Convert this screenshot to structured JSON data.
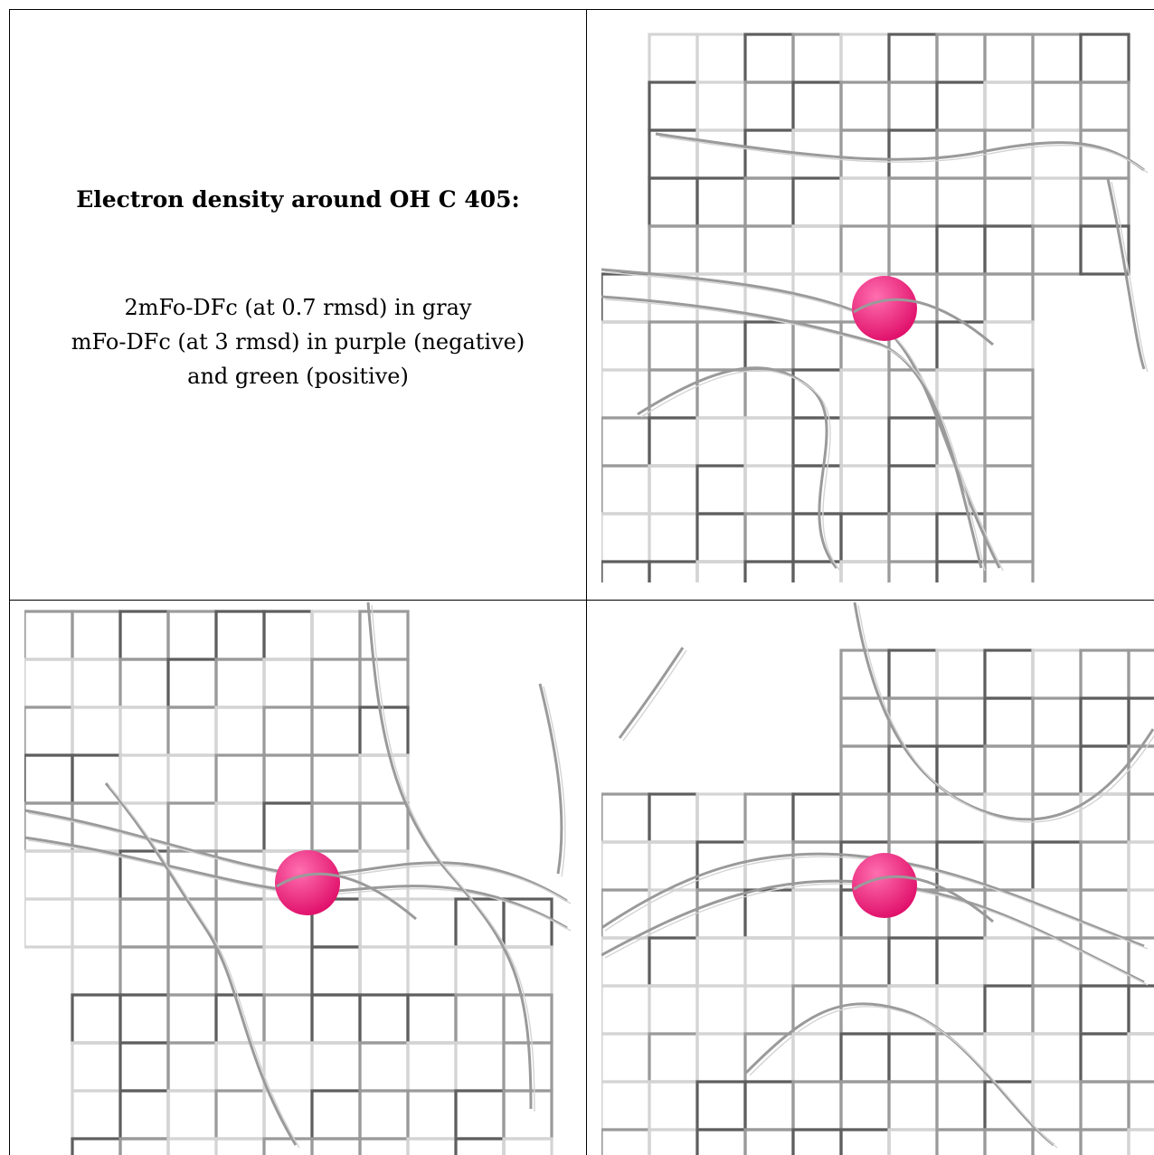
{
  "caption": {
    "title": "Electron density around OH C 405:",
    "line1": "2mFo-DFc (at 0.7 rmsd) in gray",
    "line2": "mFo-DFc (at 3 rmsd) in purple (negative)",
    "line3": "and green (positive)"
  },
  "panels": [
    {
      "name": "view-top-right"
    },
    {
      "name": "view-bottom-left"
    },
    {
      "name": "view-bottom-right"
    }
  ],
  "colors": {
    "mesh_dark": "#5e5e5e",
    "mesh_mid": "#9a9a9a",
    "mesh_light": "#d4d4d4",
    "atom": "#e0106a",
    "atom_highlight": "#ff6fb0"
  }
}
